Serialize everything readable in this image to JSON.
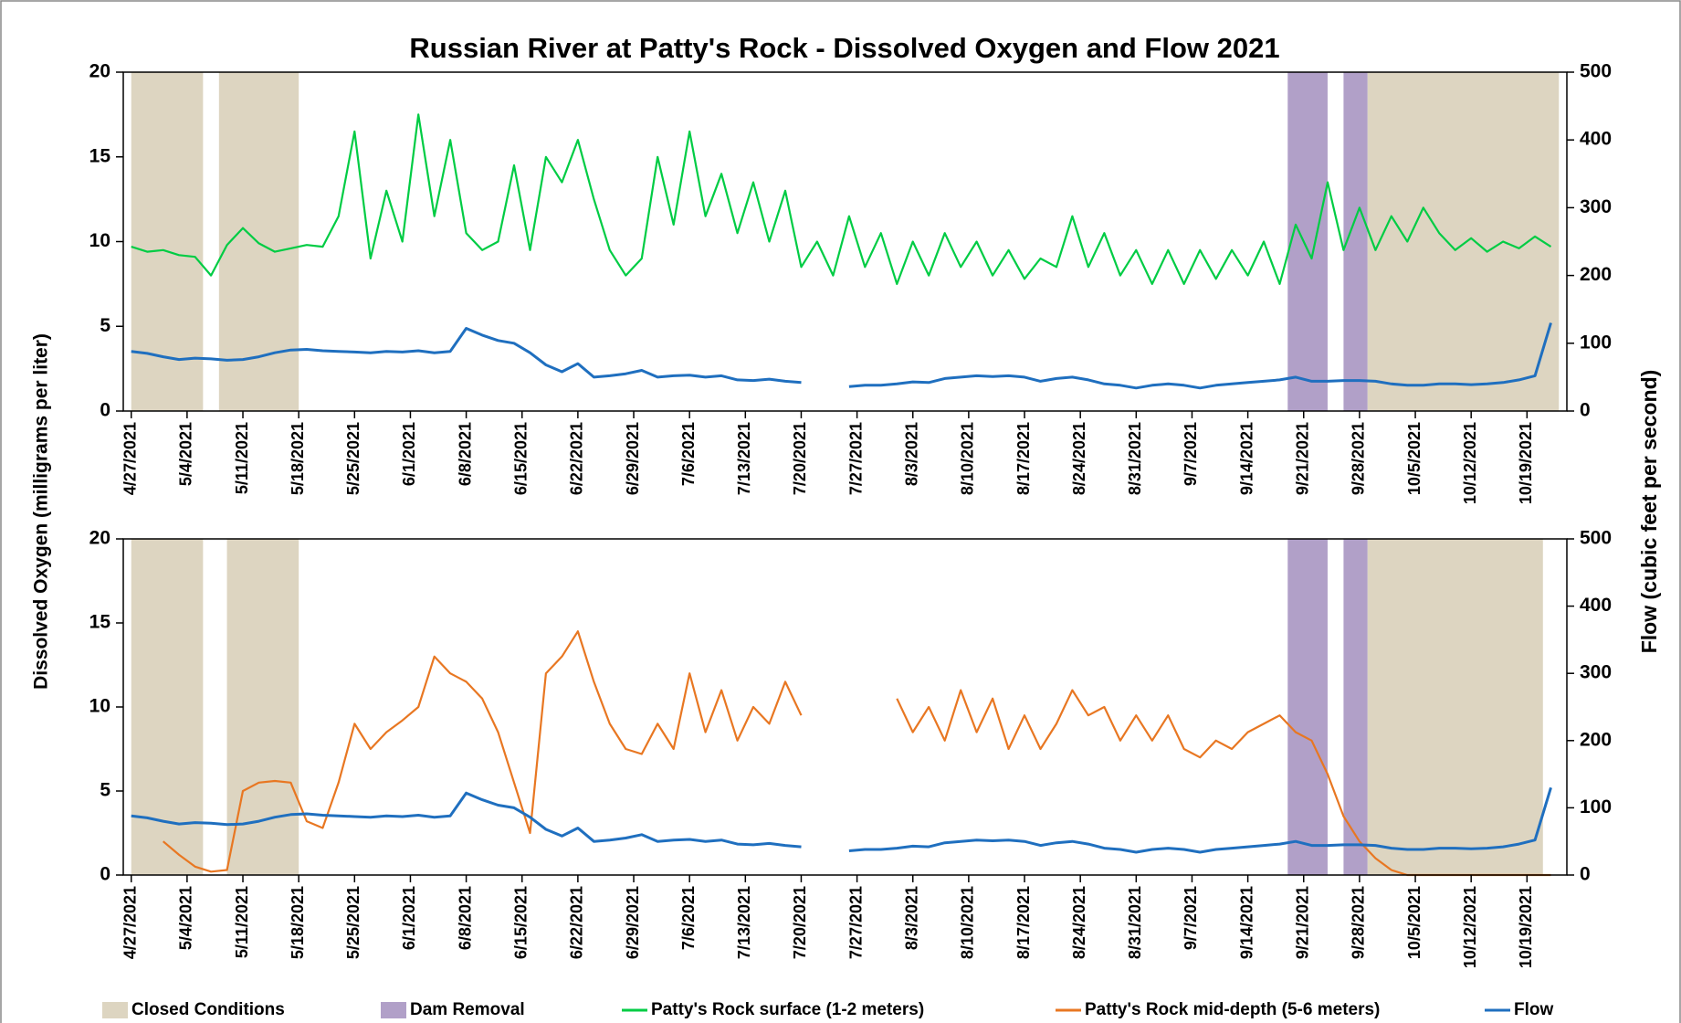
{
  "chart_data": [
    {
      "type": "line",
      "title": "Russian River at Patty's Rock - Dissolved Oxygen and Flow 2021",
      "ylabel": "Dissolved Oxygen (milligrams per liter)",
      "y2label": "Flow (cubic feet per second)",
      "xlim": [
        "2021-04-26",
        "2021-10-24"
      ],
      "xticks": [
        {
          "value": "2021-04-27",
          "label": "4/27/2021"
        },
        {
          "value": "2021-05-04",
          "label": "5/4/2021"
        },
        {
          "value": "2021-05-11",
          "label": "5/11/2021"
        },
        {
          "value": "2021-05-18",
          "label": "5/18/2021"
        },
        {
          "value": "2021-05-25",
          "label": "5/25/2021"
        },
        {
          "value": "2021-06-01",
          "label": "6/1/2021"
        },
        {
          "value": "2021-06-08",
          "label": "6/8/2021"
        },
        {
          "value": "2021-06-15",
          "label": "6/15/2021"
        },
        {
          "value": "2021-06-22",
          "label": "6/22/2021"
        },
        {
          "value": "2021-06-29",
          "label": "6/29/2021"
        },
        {
          "value": "2021-07-06",
          "label": "7/6/2021"
        },
        {
          "value": "2021-07-13",
          "label": "7/13/2021"
        },
        {
          "value": "2021-07-20",
          "label": "7/20/2021"
        },
        {
          "value": "2021-07-27",
          "label": "7/27/2021"
        },
        {
          "value": "2021-08-03",
          "label": "8/3/2021"
        },
        {
          "value": "2021-08-10",
          "label": "8/10/2021"
        },
        {
          "value": "2021-08-17",
          "label": "8/17/2021"
        },
        {
          "value": "2021-08-24",
          "label": "8/24/2021"
        },
        {
          "value": "2021-08-31",
          "label": "8/31/2021"
        },
        {
          "value": "2021-09-07",
          "label": "9/7/2021"
        },
        {
          "value": "2021-09-14",
          "label": "9/14/2021"
        },
        {
          "value": "2021-09-21",
          "label": "9/21/2021"
        },
        {
          "value": "2021-09-28",
          "label": "9/28/2021"
        },
        {
          "value": "2021-10-05",
          "label": "10/5/2021"
        },
        {
          "value": "2021-10-12",
          "label": "10/12/2021"
        },
        {
          "value": "2021-10-19",
          "label": "10/19/2021"
        }
      ],
      "ylim": [
        0,
        20
      ],
      "yticks": [
        0,
        5,
        10,
        15,
        20
      ],
      "y2lim": [
        0,
        500
      ],
      "y2ticks": [
        0,
        100,
        200,
        300,
        400,
        500
      ],
      "spans": [
        {
          "name": "Closed Conditions",
          "color": "#ddd5c1",
          "ranges": [
            [
              "2021-04-27",
              "2021-05-06"
            ],
            [
              "2021-05-08",
              "2021-05-18"
            ],
            [
              "2021-09-29",
              "2021-10-23"
            ]
          ]
        },
        {
          "name": "Dam Removal",
          "color": "#b1a0c8",
          "ranges": [
            [
              "2021-09-19",
              "2021-09-24"
            ],
            [
              "2021-09-26",
              "2021-09-29"
            ]
          ]
        }
      ],
      "x": [
        "2021-04-27",
        "2021-04-29",
        "2021-05-01",
        "2021-05-03",
        "2021-05-05",
        "2021-05-07",
        "2021-05-09",
        "2021-05-11",
        "2021-05-13",
        "2021-05-15",
        "2021-05-17",
        "2021-05-19",
        "2021-05-21",
        "2021-05-23",
        "2021-05-25",
        "2021-05-27",
        "2021-05-29",
        "2021-05-31",
        "2021-06-02",
        "2021-06-04",
        "2021-06-06",
        "2021-06-08",
        "2021-06-10",
        "2021-06-12",
        "2021-06-14",
        "2021-06-16",
        "2021-06-18",
        "2021-06-20",
        "2021-06-22",
        "2021-06-24",
        "2021-06-26",
        "2021-06-28",
        "2021-06-30",
        "2021-07-02",
        "2021-07-04",
        "2021-07-06",
        "2021-07-08",
        "2021-07-10",
        "2021-07-12",
        "2021-07-14",
        "2021-07-16",
        "2021-07-18",
        "2021-07-20",
        "2021-07-22",
        "2021-07-24",
        "2021-07-26",
        "2021-07-28",
        "2021-07-30",
        "2021-08-01",
        "2021-08-03",
        "2021-08-05",
        "2021-08-07",
        "2021-08-09",
        "2021-08-11",
        "2021-08-13",
        "2021-08-15",
        "2021-08-17",
        "2021-08-19",
        "2021-08-21",
        "2021-08-23",
        "2021-08-25",
        "2021-08-27",
        "2021-08-29",
        "2021-08-31",
        "2021-09-02",
        "2021-09-04",
        "2021-09-06",
        "2021-09-08",
        "2021-09-10",
        "2021-09-12",
        "2021-09-14",
        "2021-09-16",
        "2021-09-18",
        "2021-09-20",
        "2021-09-22",
        "2021-09-24",
        "2021-09-26",
        "2021-09-28",
        "2021-09-30",
        "2021-10-02",
        "2021-10-04",
        "2021-10-06",
        "2021-10-08",
        "2021-10-10",
        "2021-10-12",
        "2021-10-14",
        "2021-10-16",
        "2021-10-18",
        "2021-10-20",
        "2021-10-22"
      ],
      "series": [
        {
          "name": "Patty's Rock surface (1-2 meters)",
          "color": "#00cc44",
          "values": [
            9.7,
            9.4,
            9.5,
            9.2,
            9.1,
            8.0,
            9.8,
            10.8,
            9.9,
            9.4,
            9.6,
            9.8,
            9.7,
            11.5,
            16.5,
            9.0,
            13.0,
            10.0,
            17.5,
            11.5,
            16.0,
            10.5,
            9.5,
            10.0,
            14.5,
            9.5,
            15.0,
            13.5,
            16.0,
            12.5,
            9.5,
            8.0,
            9.0,
            15.0,
            11.0,
            16.5,
            11.5,
            14.0,
            10.5,
            13.5,
            10.0,
            13.0,
            8.5,
            10.0,
            8.0,
            11.5,
            8.5,
            10.5,
            7.5,
            10.0,
            8.0,
            10.5,
            8.5,
            10.0,
            8.0,
            9.5,
            7.8,
            9.0,
            8.5,
            11.5,
            8.5,
            10.5,
            8.0,
            9.5,
            7.5,
            9.5,
            7.5,
            9.5,
            7.8,
            9.5,
            8.0,
            10.0,
            7.5,
            11.0,
            9.0,
            13.5,
            9.5,
            12.0,
            9.5,
            11.5,
            10.0,
            12.0,
            10.5,
            9.5,
            10.2,
            9.4,
            10.0,
            9.6,
            10.3,
            9.7
          ]
        },
        {
          "name": "Flow",
          "color": "#1f6fbf",
          "axis": "y2",
          "values": [
            88,
            85,
            80,
            76,
            78,
            77,
            75,
            76,
            80,
            86,
            90,
            91,
            89,
            88,
            87,
            86,
            88,
            87,
            89,
            86,
            88,
            122,
            112,
            104,
            100,
            86,
            68,
            58,
            70,
            50,
            52,
            55,
            60,
            50,
            52,
            53,
            50,
            52,
            46,
            45,
            47,
            44,
            42,
            null,
            null,
            36,
            38,
            38,
            40,
            43,
            42,
            48,
            50,
            52,
            51,
            52,
            50,
            44,
            48,
            50,
            46,
            40,
            38,
            34,
            38,
            40,
            38,
            34,
            38,
            40,
            42,
            44,
            46,
            50,
            44,
            44,
            45,
            45,
            44,
            40,
            38,
            38,
            40,
            40,
            39,
            40,
            42,
            46,
            52,
            130
          ]
        }
      ]
    },
    {
      "type": "line",
      "xlim": [
        "2021-04-26",
        "2021-10-24"
      ],
      "xticks": [
        {
          "value": "2021-04-27",
          "label": "4/27/2021"
        },
        {
          "value": "2021-05-04",
          "label": "5/4/2021"
        },
        {
          "value": "2021-05-11",
          "label": "5/11/2021"
        },
        {
          "value": "2021-05-18",
          "label": "5/18/2021"
        },
        {
          "value": "2021-05-25",
          "label": "5/25/2021"
        },
        {
          "value": "2021-06-01",
          "label": "6/1/2021"
        },
        {
          "value": "2021-06-08",
          "label": "6/8/2021"
        },
        {
          "value": "2021-06-15",
          "label": "6/15/2021"
        },
        {
          "value": "2021-06-22",
          "label": "6/22/2021"
        },
        {
          "value": "2021-06-29",
          "label": "6/29/2021"
        },
        {
          "value": "2021-07-06",
          "label": "7/6/2021"
        },
        {
          "value": "2021-07-13",
          "label": "7/13/2021"
        },
        {
          "value": "2021-07-20",
          "label": "7/20/2021"
        },
        {
          "value": "2021-07-27",
          "label": "7/27/2021"
        },
        {
          "value": "2021-08-03",
          "label": "8/3/2021"
        },
        {
          "value": "2021-08-10",
          "label": "8/10/2021"
        },
        {
          "value": "2021-08-17",
          "label": "8/17/2021"
        },
        {
          "value": "2021-08-24",
          "label": "8/24/2021"
        },
        {
          "value": "2021-08-31",
          "label": "8/31/2021"
        },
        {
          "value": "2021-09-07",
          "label": "9/7/2021"
        },
        {
          "value": "2021-09-14",
          "label": "9/14/2021"
        },
        {
          "value": "2021-09-21",
          "label": "9/21/2021"
        },
        {
          "value": "2021-09-28",
          "label": "9/28/2021"
        },
        {
          "value": "2021-10-05",
          "label": "10/5/2021"
        },
        {
          "value": "2021-10-12",
          "label": "10/12/2021"
        },
        {
          "value": "2021-10-19",
          "label": "10/19/2021"
        }
      ],
      "ylim": [
        0,
        20
      ],
      "yticks": [
        0,
        5,
        10,
        15,
        20
      ],
      "y2lim": [
        0,
        500
      ],
      "y2ticks": [
        0,
        100,
        200,
        300,
        400,
        500
      ],
      "spans": [
        {
          "color": "#ddd5c1",
          "ranges": [
            [
              "2021-04-27",
              "2021-05-06"
            ],
            [
              "2021-05-09",
              "2021-05-18"
            ],
            [
              "2021-09-29",
              "2021-10-21"
            ]
          ]
        },
        {
          "color": "#b1a0c8",
          "ranges": [
            [
              "2021-09-19",
              "2021-09-24"
            ],
            [
              "2021-09-26",
              "2021-09-29"
            ]
          ]
        }
      ],
      "x": [
        "2021-04-27",
        "2021-04-29",
        "2021-05-01",
        "2021-05-03",
        "2021-05-05",
        "2021-05-07",
        "2021-05-09",
        "2021-05-11",
        "2021-05-13",
        "2021-05-15",
        "2021-05-17",
        "2021-05-19",
        "2021-05-21",
        "2021-05-23",
        "2021-05-25",
        "2021-05-27",
        "2021-05-29",
        "2021-05-31",
        "2021-06-02",
        "2021-06-04",
        "2021-06-06",
        "2021-06-08",
        "2021-06-10",
        "2021-06-12",
        "2021-06-14",
        "2021-06-16",
        "2021-06-18",
        "2021-06-20",
        "2021-06-22",
        "2021-06-24",
        "2021-06-26",
        "2021-06-28",
        "2021-06-30",
        "2021-07-02",
        "2021-07-04",
        "2021-07-06",
        "2021-07-08",
        "2021-07-10",
        "2021-07-12",
        "2021-07-14",
        "2021-07-16",
        "2021-07-18",
        "2021-07-20",
        "2021-07-22",
        "2021-07-24",
        "2021-07-26",
        "2021-07-28",
        "2021-07-30",
        "2021-08-01",
        "2021-08-03",
        "2021-08-05",
        "2021-08-07",
        "2021-08-09",
        "2021-08-11",
        "2021-08-13",
        "2021-08-15",
        "2021-08-17",
        "2021-08-19",
        "2021-08-21",
        "2021-08-23",
        "2021-08-25",
        "2021-08-27",
        "2021-08-29",
        "2021-08-31",
        "2021-09-02",
        "2021-09-04",
        "2021-09-06",
        "2021-09-08",
        "2021-09-10",
        "2021-09-12",
        "2021-09-14",
        "2021-09-16",
        "2021-09-18",
        "2021-09-20",
        "2021-09-22",
        "2021-09-24",
        "2021-09-26",
        "2021-09-28",
        "2021-09-30",
        "2021-10-02",
        "2021-10-04",
        "2021-10-06",
        "2021-10-08",
        "2021-10-10",
        "2021-10-12",
        "2021-10-14",
        "2021-10-16",
        "2021-10-18",
        "2021-10-20",
        "2021-10-22"
      ],
      "series": [
        {
          "name": "Patty's Rock mid-depth (5-6 meters)",
          "color": "#e87722",
          "values": [
            null,
            null,
            2.0,
            1.2,
            0.5,
            0.2,
            0.3,
            5.0,
            5.5,
            5.6,
            5.5,
            3.2,
            2.8,
            5.5,
            9.0,
            7.5,
            8.5,
            9.2,
            10.0,
            13.0,
            12.0,
            11.5,
            10.5,
            8.5,
            5.5,
            2.5,
            12.0,
            13.0,
            14.5,
            11.5,
            9.0,
            7.5,
            7.2,
            9.0,
            7.5,
            12.0,
            8.5,
            11.0,
            8.0,
            10.0,
            9.0,
            11.5,
            9.5,
            null,
            null,
            null,
            null,
            null,
            10.5,
            8.5,
            10.0,
            8.0,
            11.0,
            8.5,
            10.5,
            7.5,
            9.5,
            7.5,
            9.0,
            11.0,
            9.5,
            10.0,
            8.0,
            9.5,
            8.0,
            9.5,
            7.5,
            7.0,
            8.0,
            7.5,
            8.5,
            9.0,
            9.5,
            8.5,
            8.0,
            6.0,
            3.5,
            2.0,
            1.0,
            0.3,
            0,
            0,
            0,
            0,
            0,
            0,
            0,
            0,
            0,
            0
          ]
        },
        {
          "color": "#1f6fbf",
          "axis": "y2",
          "values": [
            88,
            85,
            80,
            76,
            78,
            77,
            75,
            76,
            80,
            86,
            90,
            91,
            89,
            88,
            87,
            86,
            88,
            87,
            89,
            86,
            88,
            122,
            112,
            104,
            100,
            86,
            68,
            58,
            70,
            50,
            52,
            55,
            60,
            50,
            52,
            53,
            50,
            52,
            46,
            45,
            47,
            44,
            42,
            null,
            null,
            36,
            38,
            38,
            40,
            43,
            42,
            48,
            50,
            52,
            51,
            52,
            50,
            44,
            48,
            50,
            46,
            40,
            38,
            34,
            38,
            40,
            38,
            34,
            38,
            40,
            42,
            44,
            46,
            50,
            44,
            44,
            45,
            45,
            44,
            40,
            38,
            38,
            40,
            40,
            39,
            40,
            42,
            46,
            52,
            130
          ]
        }
      ]
    }
  ]
}
